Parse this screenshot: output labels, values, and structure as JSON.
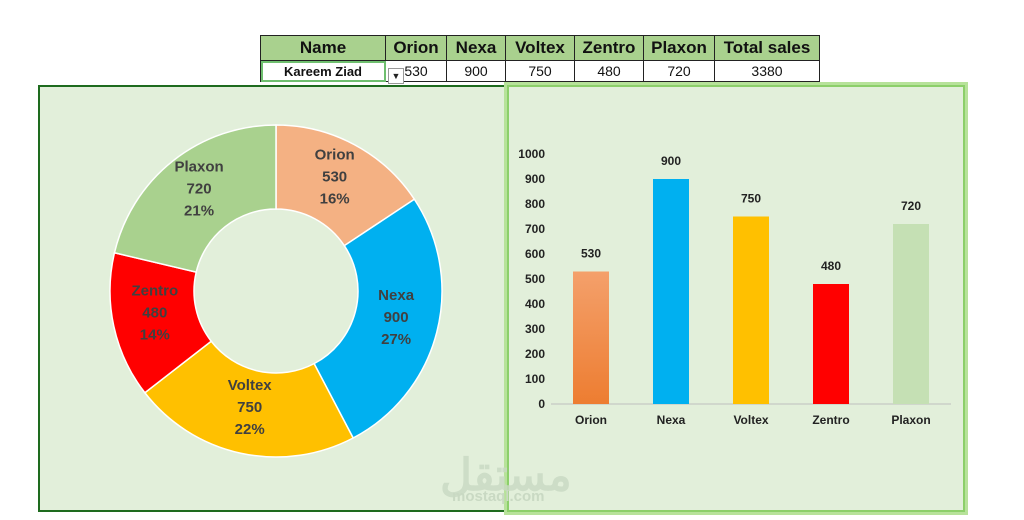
{
  "table": {
    "headers": [
      "Name",
      "Orion",
      "Nexa",
      "Voltex",
      "Zentro",
      "Plaxon",
      "Total sales"
    ],
    "row": {
      "name": "Kareem Ziad",
      "values": [
        "530",
        "900",
        "750",
        "480",
        "720",
        "3380"
      ]
    }
  },
  "colors": {
    "Orion": "#f4b183",
    "Nexa": "#00b0f0",
    "Voltex": "#ffc000",
    "Zentro": "#ff0000",
    "Plaxon": "#a9d18e",
    "OrionBar": "#ed7d31",
    "PlaxonBar": "#c5e0b4"
  },
  "chart_data": [
    {
      "type": "pie",
      "style": "doughnut",
      "categories": [
        "Orion",
        "Nexa",
        "Voltex",
        "Zentro",
        "Plaxon"
      ],
      "values": [
        530,
        900,
        750,
        480,
        720
      ],
      "percent_labels": [
        "16%",
        "27%",
        "22%",
        "14%",
        "21%"
      ]
    },
    {
      "type": "bar",
      "categories": [
        "Orion",
        "Nexa",
        "Voltex",
        "Zentro",
        "Plaxon"
      ],
      "values": [
        530,
        900,
        750,
        480,
        720
      ],
      "ylim": [
        0,
        1000
      ],
      "yticks": [
        0,
        100,
        200,
        300,
        400,
        500,
        600,
        700,
        800,
        900,
        1000
      ],
      "title": "",
      "xlabel": "",
      "ylabel": ""
    }
  ],
  "watermark": {
    "arabic": "مستقل",
    "latin": "mostaql.com"
  }
}
